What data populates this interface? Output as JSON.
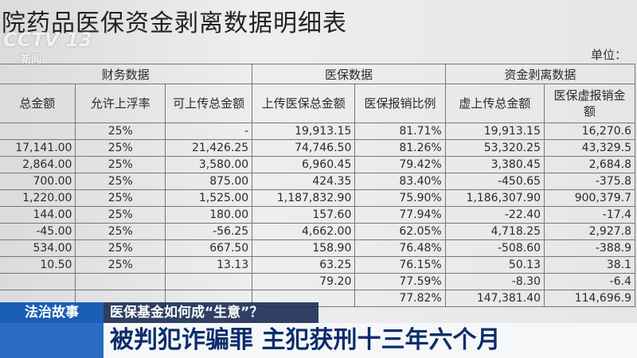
{
  "document": {
    "title": "院药品医保资金剥离数据明细表",
    "unit": "单位：",
    "logo": {
      "channel": "CCTV 13",
      "sub": "新闻"
    },
    "table": {
      "groups": [
        "财务数据",
        "医保数据",
        "资金剥离数据"
      ],
      "headers": [
        "总金额",
        "允许上浮率",
        "可上传总金额",
        "上传医保总金额",
        "医保报销比例",
        "虚上传总金额",
        "医保虚报销金额"
      ],
      "rows": [
        [
          "",
          "25%",
          "-",
          "19,913.15",
          "81.71%",
          "19,913.15",
          "16,270.6"
        ],
        [
          "17,141.00",
          "25%",
          "21,426.25",
          "74,746.50",
          "81.26%",
          "53,320.25",
          "43,329.5"
        ],
        [
          "2,864.00",
          "25%",
          "3,580.00",
          "6,960.45",
          "79.42%",
          "3,380.45",
          "2,684.8"
        ],
        [
          "700.00",
          "25%",
          "875.00",
          "424.35",
          "83.40%",
          "-450.65",
          "-375.8"
        ],
        [
          "1,220.00",
          "25%",
          "1,525.00",
          "1,187,832.90",
          "75.90%",
          "1,186,307.90",
          "900,379.7"
        ],
        [
          "144.00",
          "25%",
          "180.00",
          "157.60",
          "77.94%",
          "-22.40",
          "-17.4"
        ],
        [
          "-45.00",
          "25%",
          "-56.25",
          "4,662.00",
          "62.05%",
          "4,718.25",
          "2,927.8"
        ],
        [
          "534.00",
          "25%",
          "667.50",
          "158.90",
          "76.48%",
          "-508.60",
          "-388.9"
        ],
        [
          "10.50",
          "25%",
          "13.13",
          "63.25",
          "76.15%",
          "50.13",
          "38.1"
        ],
        [
          "",
          "",
          "",
          "79.20",
          "77.59%",
          "-8.30",
          "-6.4"
        ],
        [
          "",
          "",
          "",
          "",
          "77.82%",
          "147,381.40",
          "114,696.9"
        ]
      ]
    },
    "banner": {
      "tag": "法治故事",
      "topic": "医保基金如何成“生意”？",
      "headline": "被判犯诈骗罪 主犯获刑十三年六个月"
    }
  }
}
